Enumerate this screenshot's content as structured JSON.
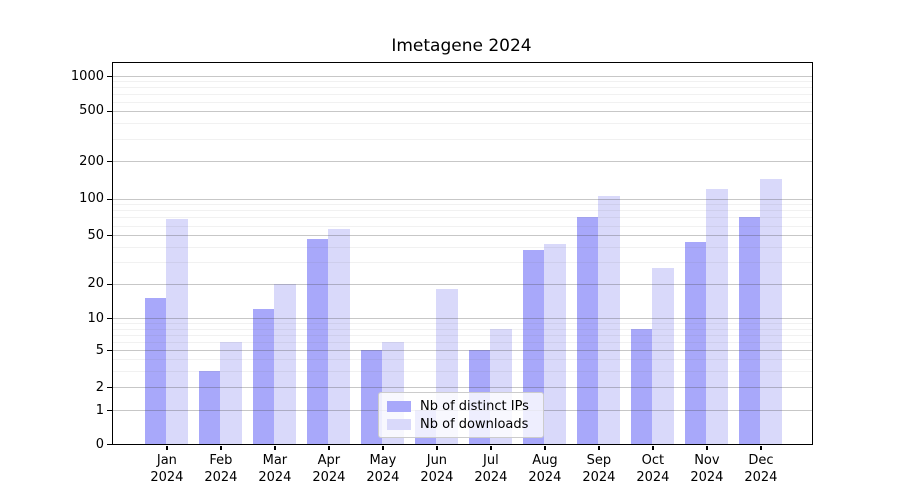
{
  "chart_data": {
    "type": "bar",
    "title": "Imetagene 2024",
    "categories": [
      "Jan",
      "Feb",
      "Mar",
      "Apr",
      "May",
      "Jun",
      "Jul",
      "Aug",
      "Sep",
      "Oct",
      "Nov",
      "Dec"
    ],
    "year_label": "2024",
    "series": [
      {
        "name": "Nb of distinct IPs",
        "color": "#a8a8fa",
        "values": [
          15,
          3,
          12,
          46,
          5,
          1,
          5,
          38,
          70,
          8,
          44,
          70
        ]
      },
      {
        "name": "Nb of downloads",
        "color": "#d9d9fa",
        "values": [
          68,
          6,
          20,
          56,
          6,
          18,
          8,
          42,
          105,
          27,
          120,
          145
        ]
      }
    ],
    "y_ticks": [
      0,
      1,
      2,
      5,
      10,
      20,
      50,
      100,
      200,
      500,
      1000
    ],
    "y_minor_ticks": [
      3,
      4,
      6,
      7,
      8,
      9,
      30,
      40,
      60,
      70,
      80,
      90,
      300,
      400,
      600,
      700,
      800,
      900
    ],
    "yscale": "symlog",
    "ylim": [
      0,
      1200
    ],
    "xlabel": "",
    "ylabel": "",
    "grid": "horizontal major and minor gridlines",
    "legend_position": "lower center inside plot"
  }
}
